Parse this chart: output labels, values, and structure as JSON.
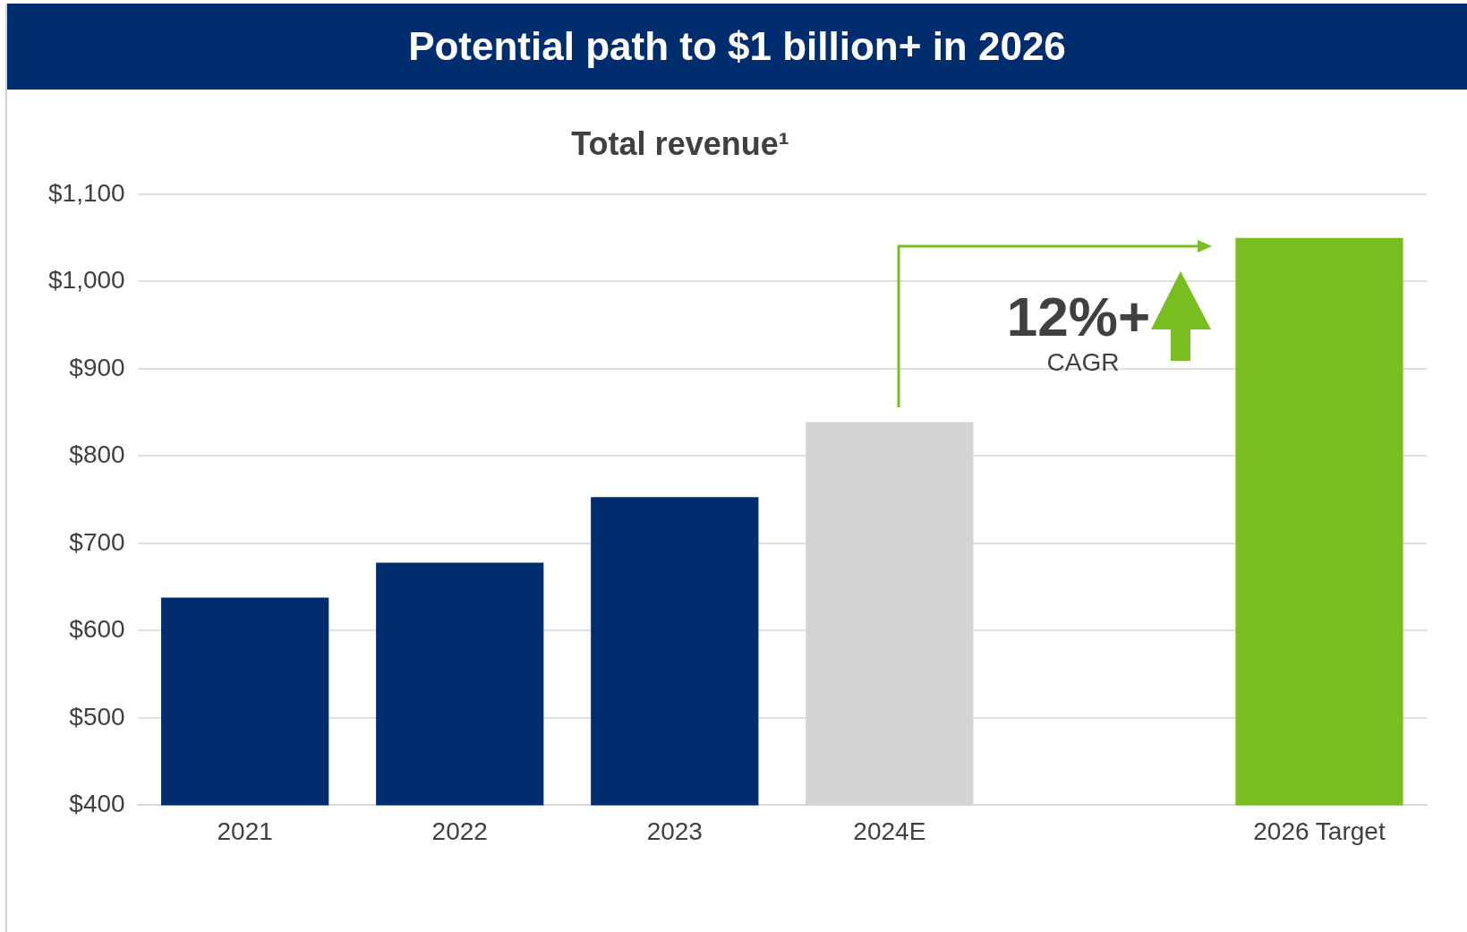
{
  "chart_data": {
    "type": "bar",
    "title": "Potential path to $1 billion+ in 2026",
    "subtitle": "Total revenue¹",
    "categories": [
      "2021",
      "2022",
      "2023",
      "2024E",
      null,
      "2026 Target"
    ],
    "values": [
      638,
      678,
      753,
      839,
      null,
      1050
    ],
    "colors": [
      "#002d6e",
      "#002d6e",
      "#002d6e",
      "#d4d4d4",
      null,
      "#78be20"
    ],
    "ylim": [
      400,
      1100
    ],
    "yticks": [
      {
        "value": 400,
        "label": "$400"
      },
      {
        "value": 500,
        "label": "$500"
      },
      {
        "value": 600,
        "label": "$600"
      },
      {
        "value": 700,
        "label": "$700"
      },
      {
        "value": 800,
        "label": "$800"
      },
      {
        "value": 900,
        "label": "$900"
      },
      {
        "value": 1000,
        "label": "$1,000"
      },
      {
        "value": 1100,
        "label": "$1,100"
      }
    ],
    "grid": "y",
    "annotations": [
      "12%+",
      "CAGR"
    ]
  }
}
